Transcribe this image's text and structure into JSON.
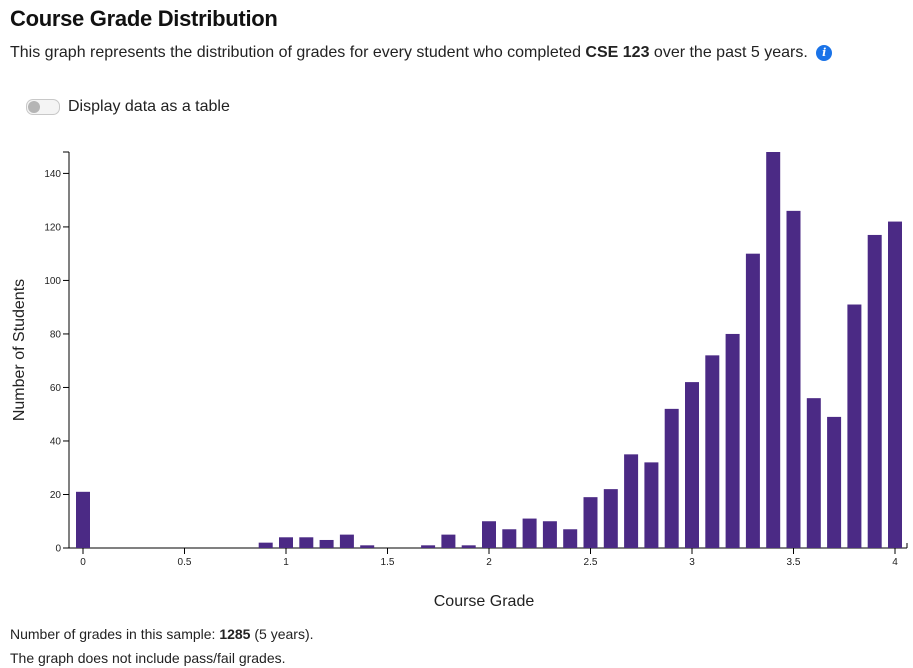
{
  "header": {
    "title": "Course Grade Distribution",
    "subtitle_before": "This graph represents the distribution of grades for every student who completed ",
    "course": "CSE 123",
    "subtitle_after": " over the past 5 years.",
    "info_icon": "i"
  },
  "toggle": {
    "label": "Display data as a table",
    "state": "off"
  },
  "footer": {
    "count_label": "Number of grades in this sample: ",
    "count": "1285",
    "count_suffix": " (5 years).",
    "note": "The graph does not include pass/fail grades."
  },
  "colors": {
    "bar": "#4b2a85",
    "info": "#1a73e8"
  },
  "chart_data": {
    "type": "bar",
    "xlabel": "Course Grade",
    "ylabel": "Number of Students",
    "xlim": [
      0,
      4
    ],
    "ylim": [
      0,
      148
    ],
    "xticks": [
      "0",
      "0.5",
      "1",
      "1.5",
      "2",
      "2.5",
      "3",
      "3.5",
      "4"
    ],
    "yticks": [
      "0",
      "20",
      "40",
      "60",
      "80",
      "100",
      "120",
      "140"
    ],
    "x": [
      0.0,
      0.9,
      1.0,
      1.1,
      1.2,
      1.3,
      1.4,
      1.7,
      1.8,
      1.9,
      2.0,
      2.1,
      2.2,
      2.3,
      2.4,
      2.5,
      2.6,
      2.7,
      2.8,
      2.9,
      3.0,
      3.1,
      3.2,
      3.3,
      3.4,
      3.5,
      3.6,
      3.7,
      3.8,
      3.9,
      4.0
    ],
    "values": [
      21,
      2,
      4,
      4,
      3,
      5,
      1,
      1,
      5,
      1,
      10,
      7,
      11,
      10,
      7,
      19,
      22,
      35,
      32,
      52,
      62,
      72,
      80,
      110,
      148,
      126,
      56,
      49,
      91,
      117,
      122
    ]
  }
}
